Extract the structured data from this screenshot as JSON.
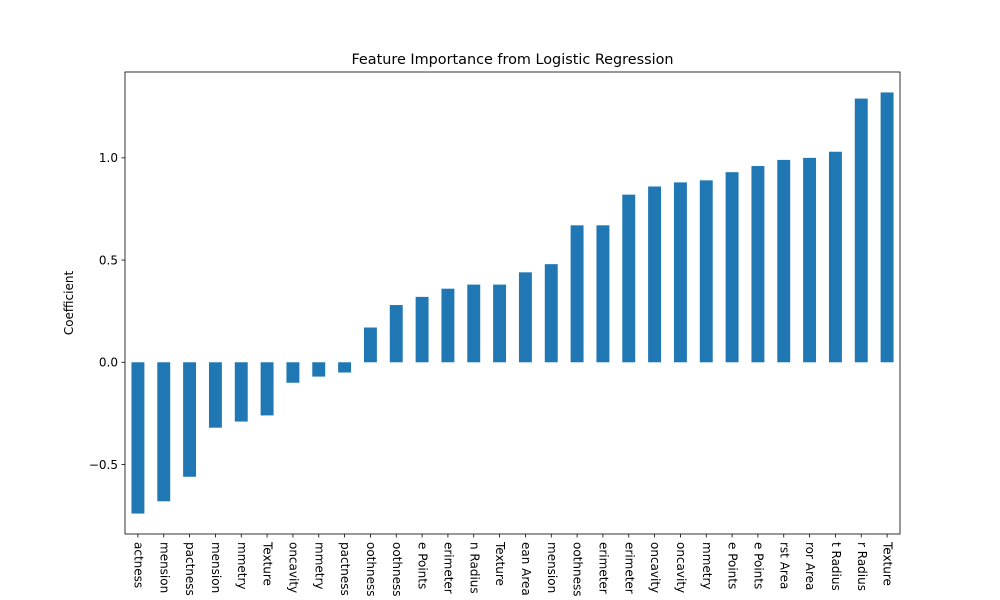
{
  "chart_data": {
    "type": "bar",
    "title": "Feature Importance from Logistic Regression",
    "xlabel": "",
    "ylabel": "Coefficient",
    "ylim": [
      -0.84,
      1.42
    ],
    "yticks": [
      -0.5,
      0.0,
      0.5,
      1.0
    ],
    "ytick_labels": [
      "−0.5",
      "0.0",
      "0.5",
      "1.0"
    ],
    "grid": false,
    "bar_color": "#1f77b4",
    "categories": [
      "actness",
      "mension",
      "pactness",
      "mension",
      "mmetry",
      "Texture",
      "oncavity",
      "mmetry",
      "pactness",
      "oothness",
      "oothness",
      "e Points",
      "erimeter",
      "n Radius",
      "Texture",
      "ean Area",
      "mension",
      "oothness",
      "erimeter",
      "erimeter",
      "oncavity",
      "oncavity",
      "mmetry",
      "e Points",
      "e Points",
      "rst Area",
      "ror Area",
      "t Radius",
      "r Radius",
      "Texture"
    ],
    "values": [
      -0.74,
      -0.68,
      -0.56,
      -0.32,
      -0.29,
      -0.26,
      -0.1,
      -0.07,
      -0.05,
      0.17,
      0.28,
      0.32,
      0.36,
      0.38,
      0.38,
      0.44,
      0.48,
      0.67,
      0.67,
      0.82,
      0.86,
      0.88,
      0.89,
      0.93,
      0.96,
      0.99,
      1.0,
      1.03,
      1.29,
      1.32
    ]
  }
}
